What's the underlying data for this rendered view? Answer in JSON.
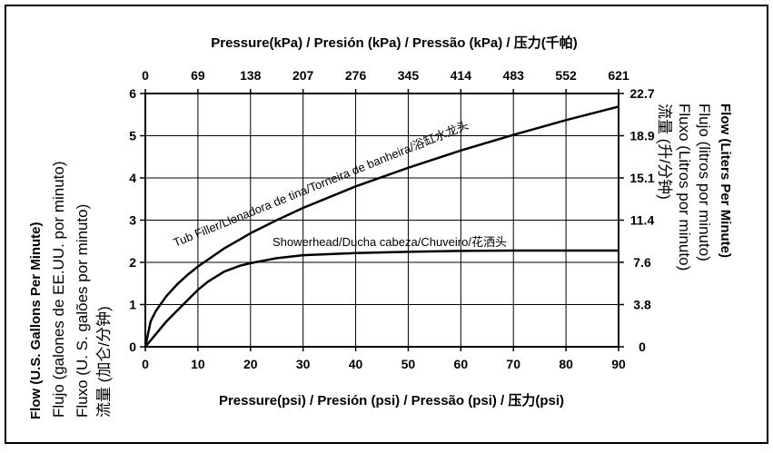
{
  "chart_data": {
    "type": "line",
    "top_axis_label": "Pressure(kPa) / Presión (kPa) / Pressão (kPa) / 压力(千帕)",
    "bottom_axis_label": "Pressure(psi) / Presión (psi) / Pressão (psi) / 压力(psi)",
    "left_axis_labels": [
      "Flow (U.S. Gallons Per Minute)",
      "Flujo (galones de EE.UU. por minuto)",
      "Fluxo (U. S. galões por minuto)",
      "流量 (加仑/分钟)"
    ],
    "right_axis_labels": [
      "Flow (Liters Per Minute)",
      "Flujo (litros por minuto)",
      "Fluxo (Litros por minuto)",
      "流量 (升/分钟)"
    ],
    "x_ticks": [
      "0",
      "10",
      "20",
      "30",
      "40",
      "50",
      "60",
      "70",
      "80",
      "90"
    ],
    "top_ticks": [
      "0",
      "69",
      "138",
      "207",
      "276",
      "345",
      "414",
      "483",
      "552",
      "621"
    ],
    "y_ticks": [
      "0",
      "1",
      "2",
      "3",
      "4",
      "5",
      "6"
    ],
    "right_ticks": [
      "0",
      "3.8",
      "7.6",
      "11.4",
      "15.1",
      "18.9",
      "22.7"
    ],
    "xlim": [
      0,
      90
    ],
    "ylim": [
      0,
      6
    ],
    "grid": true,
    "series": [
      {
        "name": "Tub Filler/Llenadora de tina/Torneira de banheira/浴缸水龙头",
        "x": [
          0,
          1,
          2,
          4,
          6,
          8,
          10,
          15,
          20,
          25,
          30,
          40,
          50,
          60,
          70,
          80,
          90
        ],
        "y": [
          0,
          0.6,
          0.85,
          1.2,
          1.47,
          1.7,
          1.9,
          2.33,
          2.69,
          3.0,
          3.29,
          3.8,
          4.24,
          4.65,
          5.02,
          5.37,
          5.69
        ]
      },
      {
        "name": "Showerhead/Ducha cabeza/Chuveiro/花洒头",
        "x": [
          0,
          1,
          2,
          4,
          6,
          8,
          10,
          12,
          15,
          18,
          20,
          25,
          30,
          40,
          50,
          60,
          70,
          80,
          90
        ],
        "y": [
          0,
          0.15,
          0.3,
          0.6,
          0.85,
          1.1,
          1.35,
          1.55,
          1.78,
          1.92,
          1.98,
          2.1,
          2.17,
          2.22,
          2.25,
          2.27,
          2.28,
          2.28,
          2.28
        ]
      }
    ]
  }
}
